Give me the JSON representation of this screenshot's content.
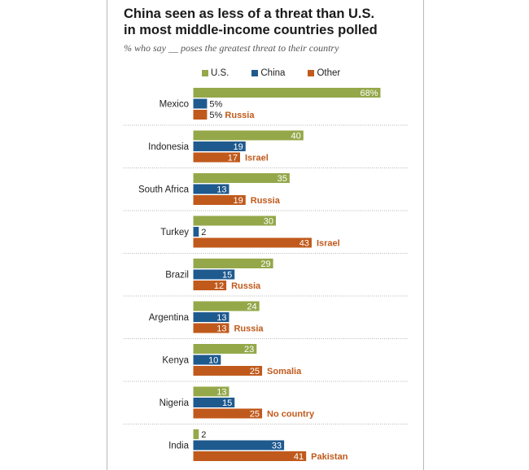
{
  "title": "China seen as less of a threat than U.S.\nin most middle-income countries polled",
  "subtitle": "% who say __ poses the greatest threat to their country",
  "colors": {
    "us": "#94a84a",
    "china": "#1f5a8f",
    "other": "#c05a1c",
    "country_text": "#222222",
    "other_label": "#c05a1c",
    "divider": "#b5b5b5"
  },
  "legend": [
    {
      "label": "U.S.",
      "color": "#94a84a"
    },
    {
      "label": "China",
      "color": "#1f5a8f"
    },
    {
      "label": "Other",
      "color": "#c05a1c"
    }
  ],
  "chart_data": {
    "type": "bar",
    "orientation": "horizontal",
    "title": "China seen as less of a threat than U.S.\nin most middle-income countries polled",
    "subtitle": "% who say __ poses the greatest threat to their country",
    "categories": [
      "Mexico",
      "Indonesia",
      "South Africa",
      "Turkey",
      "Brazil",
      "Argentina",
      "Kenya",
      "Nigeria",
      "India"
    ],
    "series": [
      {
        "name": "U.S.",
        "color": "#94a84a",
        "values": [
          68,
          40,
          35,
          30,
          29,
          24,
          23,
          13,
          2
        ]
      },
      {
        "name": "China",
        "color": "#1f5a8f",
        "values": [
          5,
          19,
          13,
          2,
          15,
          13,
          10,
          15,
          33
        ]
      },
      {
        "name": "Other",
        "color": "#c05a1c",
        "values": [
          5,
          17,
          19,
          43,
          12,
          13,
          25,
          25,
          41
        ]
      }
    ],
    "value_labels": [
      [
        "68%",
        "5%",
        "5%"
      ],
      [
        "40",
        "19",
        "17"
      ],
      [
        "35",
        "13",
        "19"
      ],
      [
        "30",
        "2",
        "43"
      ],
      [
        "29",
        "15",
        "12"
      ],
      [
        "24",
        "13",
        "13"
      ],
      [
        "23",
        "10",
        "25"
      ],
      [
        "13",
        "15",
        "25"
      ],
      [
        "2",
        "33",
        "41"
      ]
    ],
    "other_labels": [
      "Russia",
      "Israel",
      "Russia",
      "Israel",
      "Russia",
      "Russia",
      "Somalia",
      "No country",
      "Pakistan"
    ],
    "xlim": [
      0,
      70
    ],
    "grid": false,
    "legend_position": "top"
  }
}
